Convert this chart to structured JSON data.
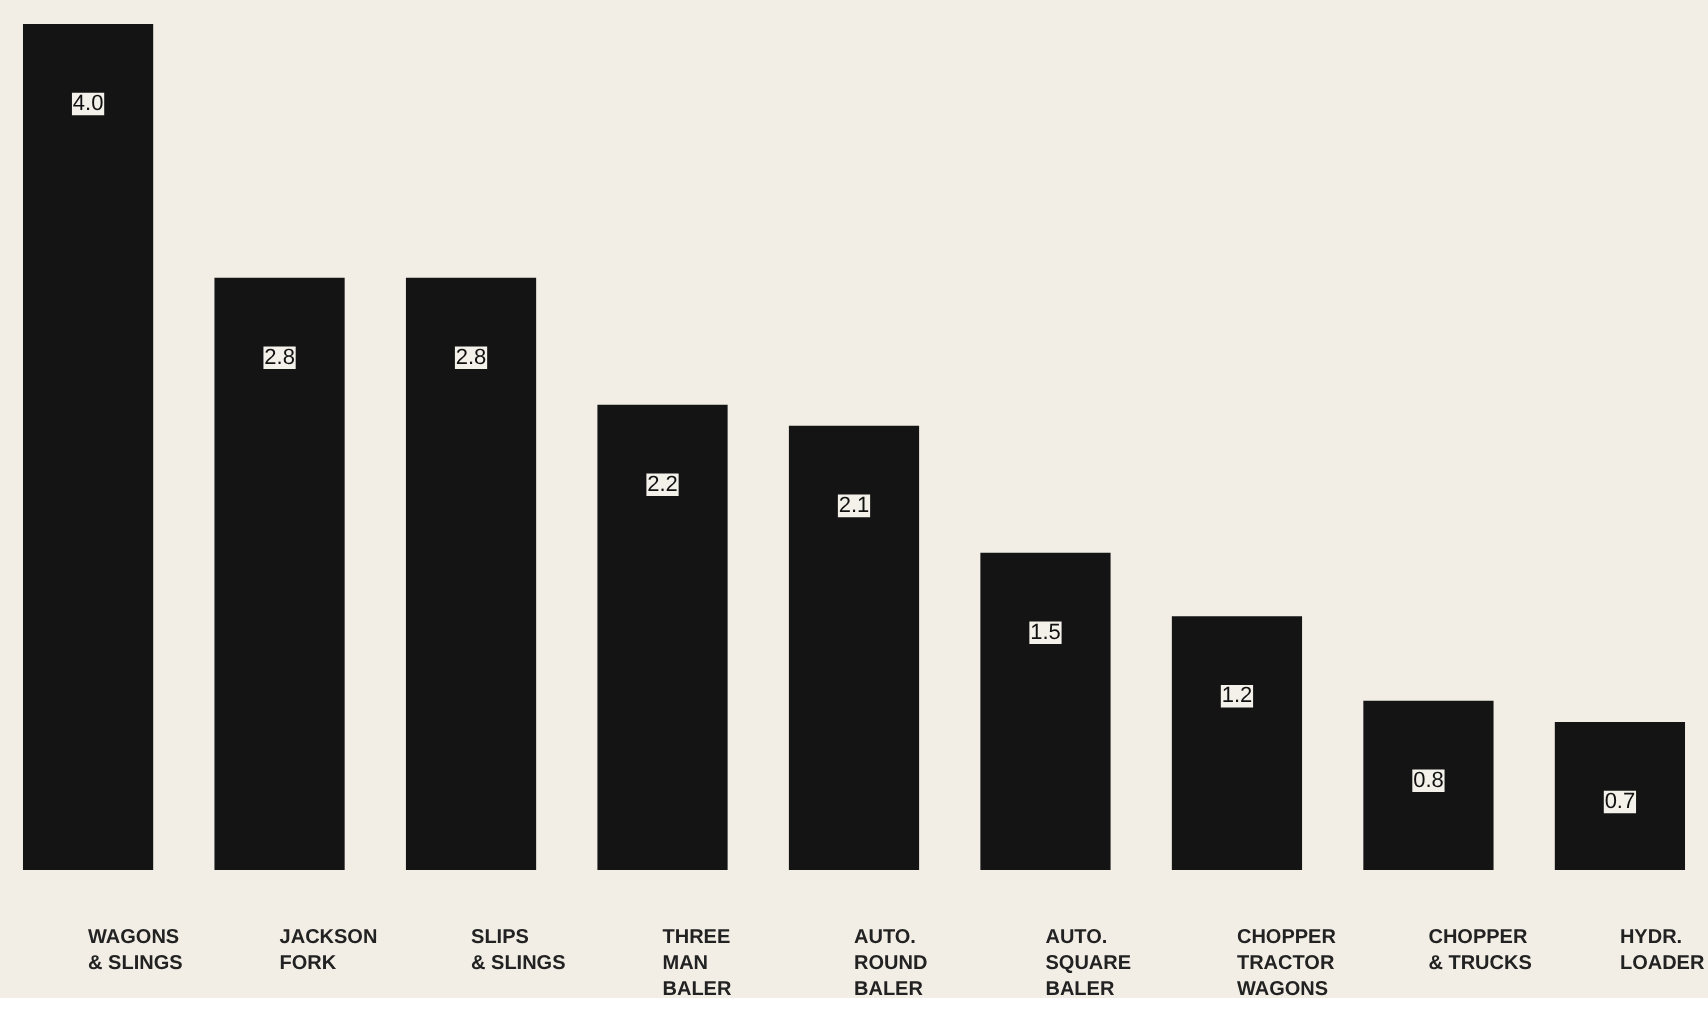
{
  "chart_data": {
    "type": "bar",
    "categories": [
      "WAGONS & SLINGS",
      "JACKSON FORK",
      "SLIPS & SLINGS",
      "THREE MAN BALER",
      "AUTO. ROUND BALER",
      "AUTO. SQUARE BALER",
      "CHOPPER TRACTOR WAGONS",
      "CHOPPER & TRUCKS",
      "HYDR. LOADER"
    ],
    "values": [
      4.0,
      2.8,
      2.8,
      2.2,
      2.1,
      1.5,
      1.2,
      0.8,
      0.7
    ],
    "value_labels": [
      "4.0",
      "2.8",
      "2.8",
      "2.2",
      "2.1",
      "1.5",
      "1.2",
      "0.8",
      "0.7"
    ],
    "color": "#141414"
  }
}
